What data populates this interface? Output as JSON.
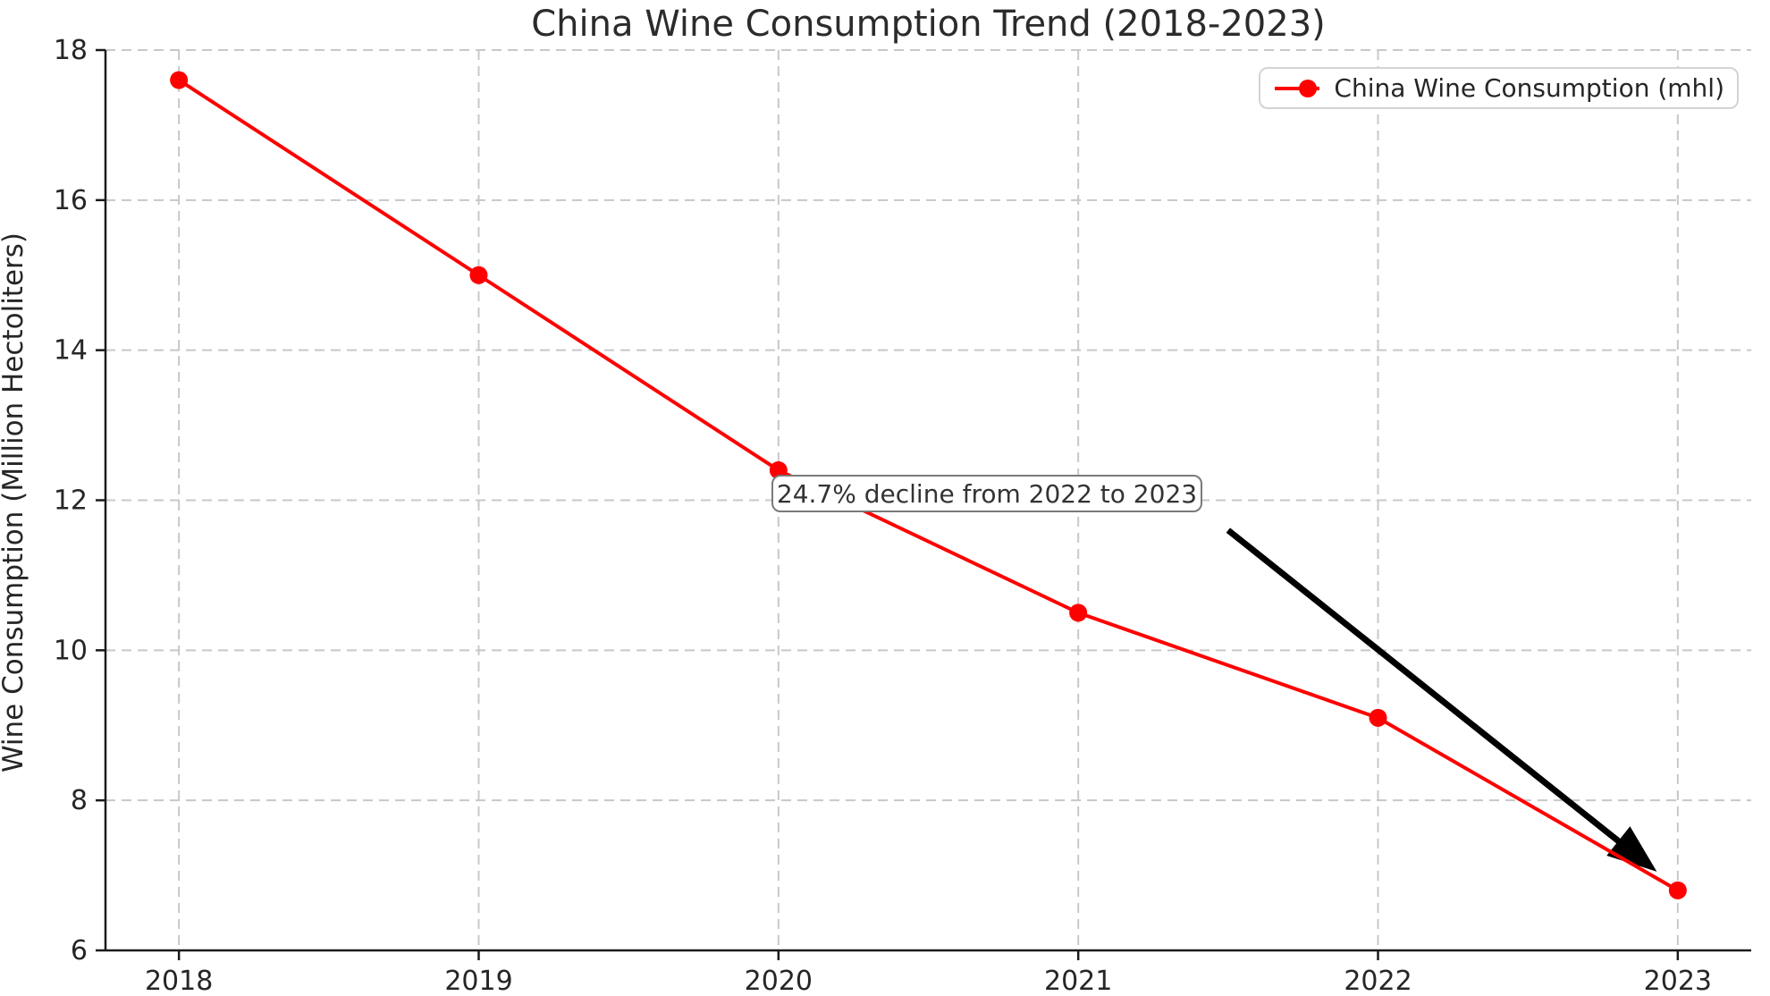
{
  "chart_data": {
    "type": "line",
    "title": "China Wine Consumption Trend (2018-2023)",
    "xlabel": "",
    "ylabel": "Wine Consumption (Million Hectoliters)",
    "x": [
      2018,
      2019,
      2020,
      2021,
      2022,
      2023
    ],
    "series": [
      {
        "name": "China Wine Consumption (mhl)",
        "values": [
          17.6,
          15.0,
          12.4,
          10.5,
          9.1,
          6.8
        ],
        "color": "#ff0000",
        "marker": "circle"
      }
    ],
    "xticks": [
      2018,
      2019,
      2020,
      2021,
      2022,
      2023
    ],
    "yticks": [
      6,
      8,
      10,
      12,
      14,
      16,
      18
    ],
    "xlim": [
      2017.755,
      2023.245
    ],
    "ylim": [
      6,
      18
    ],
    "grid": {
      "visible": true,
      "style": "dashed"
    },
    "legend": {
      "position": "upper right",
      "entries": [
        "China Wine Consumption (mhl)"
      ]
    },
    "annotation": {
      "text": "24.7% decline from 2022 to 2023",
      "text_xy": [
        2020.69,
        12.08
      ],
      "arrow_start": [
        2021.5,
        11.6
      ],
      "arrow_end": [
        2022.93,
        7.05
      ],
      "arrow_color": "#000000"
    },
    "colors": {
      "line": "#ff0000",
      "marker": "#ff0000",
      "arrow": "#000000",
      "grid": "#c8c8c8",
      "axis": "#1a1a1a",
      "tick_text": "#262626",
      "background": "#ffffff"
    }
  }
}
